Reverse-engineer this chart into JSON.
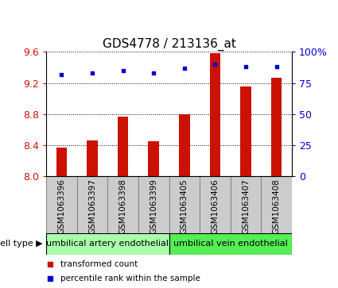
{
  "title": "GDS4778 / 213136_at",
  "samples": [
    "GSM1063396",
    "GSM1063397",
    "GSM1063398",
    "GSM1063399",
    "GSM1063405",
    "GSM1063406",
    "GSM1063407",
    "GSM1063408"
  ],
  "bar_values": [
    8.37,
    8.46,
    8.77,
    8.45,
    8.8,
    9.58,
    9.15,
    9.27
  ],
  "percentile_values": [
    82,
    83,
    85,
    83,
    87,
    90,
    88,
    88
  ],
  "ylim_left": [
    8.0,
    9.6
  ],
  "ylim_right": [
    0,
    100
  ],
  "yticks_left": [
    8.0,
    8.4,
    8.8,
    9.2,
    9.6
  ],
  "yticks_right": [
    0,
    25,
    50,
    75,
    100
  ],
  "bar_color": "#cc1100",
  "dot_color": "#0000cc",
  "cell_types": [
    {
      "label": "umbilical artery endothelial",
      "start": 0,
      "end": 4,
      "color": "#aaffaa"
    },
    {
      "label": "umbilical vein endothelial",
      "start": 4,
      "end": 8,
      "color": "#55ee55"
    }
  ],
  "cell_type_label": "cell type",
  "legend_bar_label": "transformed count",
  "legend_dot_label": "percentile rank within the sample",
  "title_fontsize": 11,
  "tick_fontsize": 9,
  "label_fontsize": 8,
  "sample_label_fontsize": 7.5,
  "bar_width": 0.35,
  "label_box_color": "#cccccc",
  "label_box_edge_color": "#888888"
}
